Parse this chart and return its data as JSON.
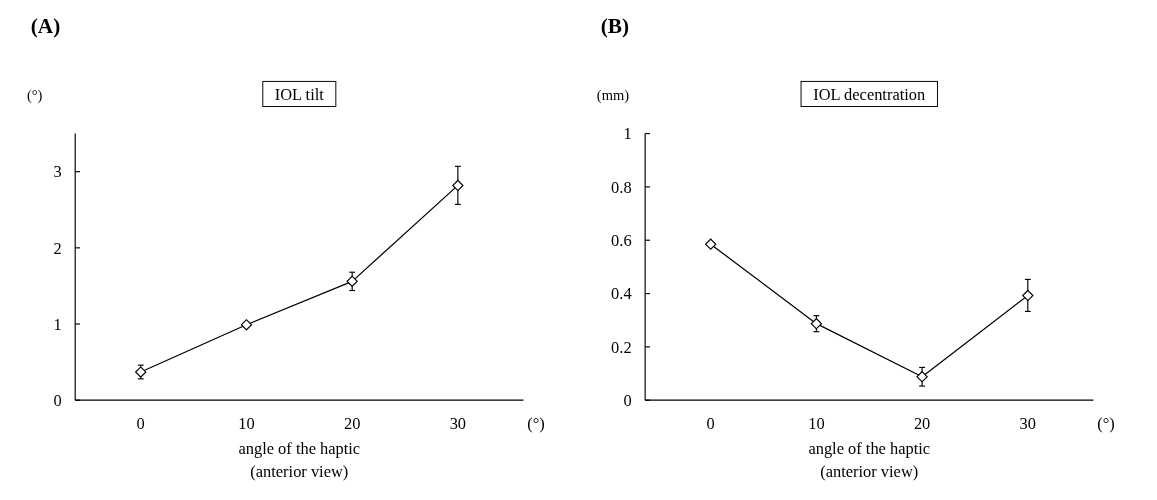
{
  "chart_data": [
    {
      "type": "line",
      "title": "IOL tilt",
      "ylabel": "(°)",
      "xlabel": "angle of the haptic\n(anterior view)",
      "annotations": [
        "(A)",
        "(°)"
      ],
      "categories": [
        "0",
        "10",
        "20",
        "30"
      ],
      "series": [
        {
          "color": "#000000",
          "values": [
            0.37,
            0.99,
            1.56,
            2.82
          ],
          "errors": [
            0.09,
            null,
            0.12,
            0.25
          ]
        }
      ],
      "ylim": [
        0,
        3.5
      ],
      "yticks": [
        0,
        1,
        2,
        3
      ],
      "marker": "diamond"
    },
    {
      "type": "line",
      "title": "IOL decentration",
      "ylabel": "(mm)",
      "xlabel": "angle of the haptic\n(anterior view)",
      "annotations": [
        "(B)",
        "(°)"
      ],
      "categories": [
        "0",
        "10",
        "20",
        "30"
      ],
      "series": [
        {
          "color": "#000000",
          "values": [
            0.585,
            0.287,
            0.088,
            0.393
          ],
          "errors": [
            null,
            0.03,
            0.035,
            0.06
          ]
        }
      ],
      "ylim": [
        0,
        1
      ],
      "yticks": [
        0,
        0.2,
        0.4,
        0.6,
        0.8,
        1
      ],
      "marker": "diamond"
    }
  ]
}
